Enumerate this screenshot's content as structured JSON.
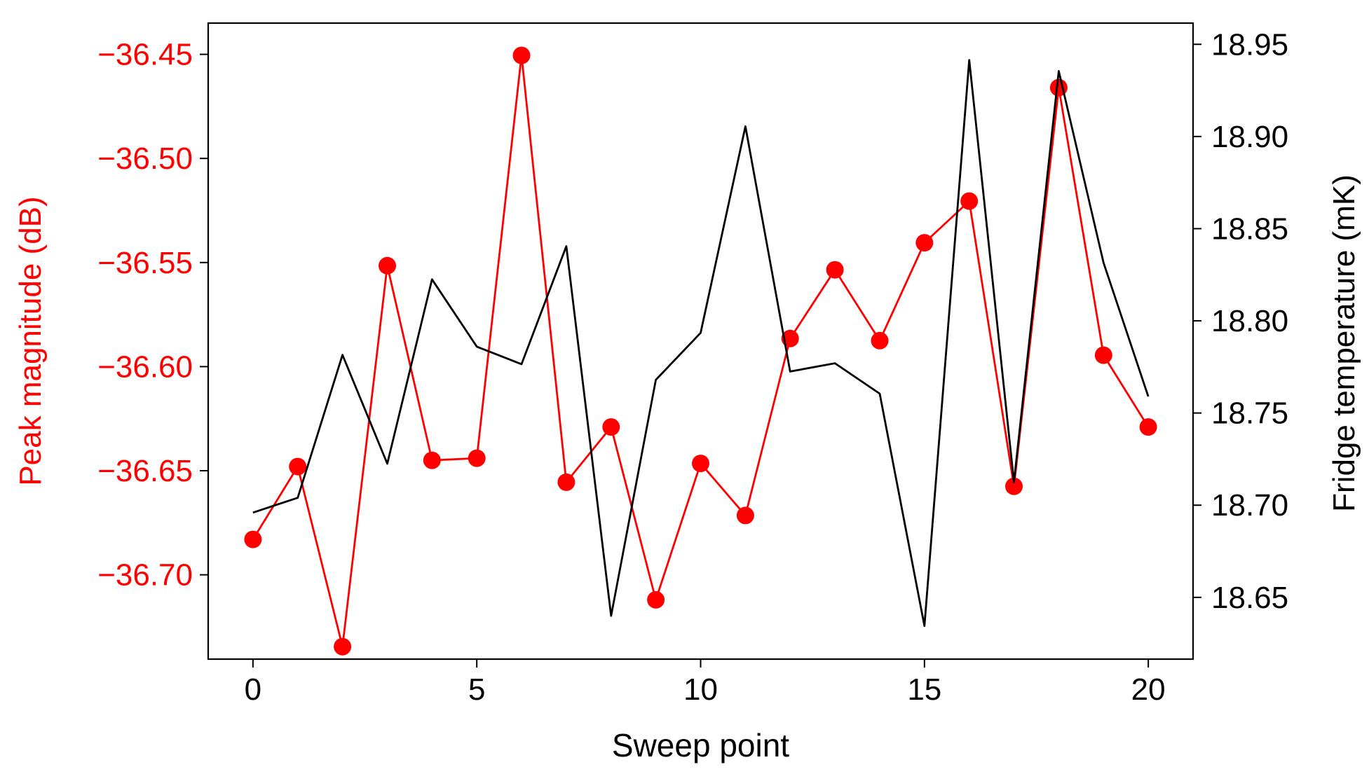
{
  "chart_data": {
    "type": "line",
    "xlabel": "Sweep point",
    "ylabel_left": "Peak magnitude (dB)",
    "ylabel_right": "Fridge temperature (mK)",
    "xlim": [
      -1,
      21
    ],
    "ylim_left": [
      -36.7405,
      -36.435
    ],
    "ylim_right": [
      18.6165,
      18.9615
    ],
    "x_ticks": [
      0,
      5,
      10,
      15,
      20
    ],
    "y_left_ticks": [
      -36.7,
      -36.65,
      -36.6,
      -36.55,
      -36.5,
      -36.45
    ],
    "y_left_tick_labels": [
      "−36.70",
      "−36.65",
      "−36.60",
      "−36.55",
      "−36.50",
      "−36.45"
    ],
    "y_right_ticks": [
      18.65,
      18.7,
      18.75,
      18.8,
      18.85,
      18.9,
      18.95
    ],
    "y_right_tick_labels": [
      "18.65",
      "18.70",
      "18.75",
      "18.80",
      "18.85",
      "18.90",
      "18.95"
    ],
    "colors": {
      "left_axis": "#ff0000",
      "right_axis": "#000000"
    },
    "grid": false,
    "x": [
      0,
      1,
      2,
      3,
      4,
      5,
      6,
      7,
      8,
      9,
      10,
      11,
      12,
      13,
      14,
      15,
      16,
      17,
      18,
      19,
      20
    ],
    "series": [
      {
        "axis": "left",
        "color": "#ff0000",
        "marker": "circle",
        "values": [
          -36.683,
          -36.648,
          -36.7345,
          -36.5515,
          -36.645,
          -36.644,
          -36.4505,
          -36.6555,
          -36.629,
          -36.712,
          -36.6465,
          -36.6715,
          -36.5865,
          -36.5535,
          -36.5875,
          -36.5405,
          -36.5205,
          -36.6575,
          -36.466,
          -36.5945,
          -36.629
        ]
      },
      {
        "axis": "right",
        "color": "#000000",
        "marker": "none",
        "values": [
          18.696,
          18.704,
          18.7815,
          18.7225,
          18.8225,
          18.786,
          18.7765,
          18.8405,
          18.64,
          18.768,
          18.7935,
          18.9055,
          18.7725,
          18.777,
          18.7605,
          18.6345,
          18.9415,
          18.7125,
          18.9355,
          18.8315,
          18.759
        ]
      }
    ]
  }
}
